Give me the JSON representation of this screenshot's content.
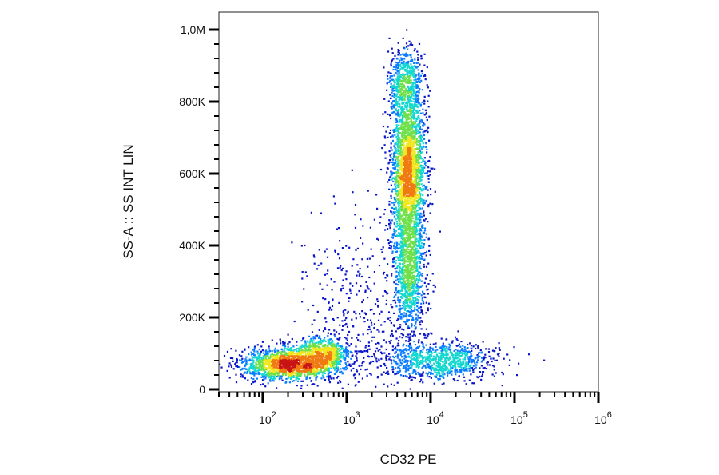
{
  "chart_data": {
    "type": "scatter",
    "style": "density-colored dot plot (flow cytometry)",
    "xlabel": "CD32 PE",
    "ylabel": "SS-A :: SS INT LIN",
    "x_scale": "log",
    "y_scale": "linear",
    "xlim": [
      30,
      1000000
    ],
    "ylim": [
      0,
      1000000
    ],
    "x_ticks": [
      {
        "value": 100,
        "base": "10",
        "exp": "2"
      },
      {
        "value": 1000,
        "base": "10",
        "exp": "3"
      },
      {
        "value": 10000,
        "base": "10",
        "exp": "4"
      },
      {
        "value": 100000,
        "base": "10",
        "exp": "5"
      },
      {
        "value": 1000000,
        "base": "10",
        "exp": "6"
      }
    ],
    "y_ticks": [
      {
        "value": 0,
        "label": "0"
      },
      {
        "value": 200000,
        "label": "200K"
      },
      {
        "value": 400000,
        "label": "400K"
      },
      {
        "value": 600000,
        "label": "600K"
      },
      {
        "value": 800000,
        "label": "800K"
      },
      {
        "value": 1000000,
        "label": "1,0M"
      }
    ],
    "populations": [
      {
        "center_x": 200,
        "center_y": 70000,
        "sd_log_x": 0.28,
        "sd_y": 22000,
        "count": 1500
      },
      {
        "center_x": 500,
        "center_y": 95000,
        "sd_log_x": 0.18,
        "sd_y": 25000,
        "count": 700
      },
      {
        "center_x": 5500,
        "center_y": 600000,
        "sd_log_x": 0.1,
        "sd_y": 120000,
        "count": 2600
      },
      {
        "center_x": 5000,
        "center_y": 850000,
        "sd_log_x": 0.1,
        "sd_y": 50000,
        "count": 500
      },
      {
        "center_x": 5500,
        "center_y": 300000,
        "sd_log_x": 0.1,
        "sd_y": 80000,
        "count": 800
      },
      {
        "center_x": 12000,
        "center_y": 80000,
        "sd_log_x": 0.35,
        "sd_y": 25000,
        "count": 900
      },
      {
        "center_x": 1500,
        "center_y": 200000,
        "sd_log_x": 0.35,
        "sd_y": 140000,
        "count": 450
      }
    ],
    "density_colors": [
      "#0a14c8",
      "#0a7cff",
      "#12d8d0",
      "#6fe04a",
      "#f2e61e",
      "#f07a12",
      "#c81414"
    ],
    "grid": false,
    "legend": "none"
  }
}
